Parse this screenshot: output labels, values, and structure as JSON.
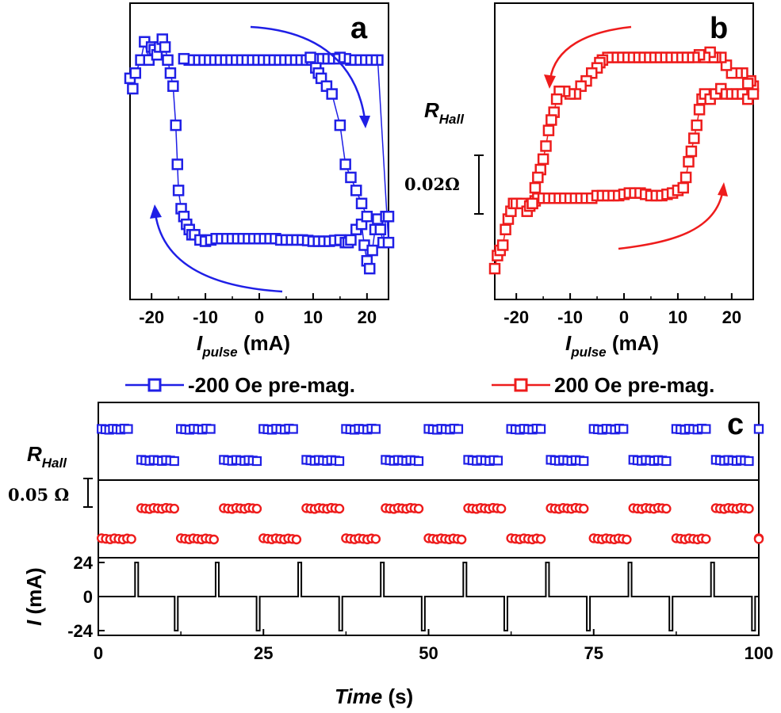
{
  "colors": {
    "blue": "#1f1fe6",
    "red": "#ee1c1c",
    "black": "#000000"
  },
  "labels": {
    "panel_a": "a",
    "panel_b": "b",
    "panel_c": "c",
    "rhall_main": "R",
    "rhall_sub": "Hall",
    "ipulse_main": "I",
    "ipulse_sub": "pulse",
    "ipulse_unit": " (mA)",
    "scale_b": "0.02Ω",
    "scale_c": "0.05 Ω",
    "legend_blue": "-200 Oe pre-mag.",
    "legend_red": "200 Oe pre-mag.",
    "i_axis_main": "I",
    "i_axis_unit": " (mA)",
    "time_main": "Time",
    "time_unit": " (s)"
  },
  "chart_data": [
    {
      "panel": "a",
      "type": "scatter",
      "series_ref": "legend_blue",
      "color": "#1f1fe6",
      "xlabel": "I_pulse (mA)",
      "xlim": [
        -24,
        24
      ],
      "ylim": [
        0,
        1
      ],
      "xticks": [
        -20,
        -10,
        0,
        10,
        20
      ],
      "points": [
        [
          -24,
          0.78
        ],
        [
          -23.5,
          0.74
        ],
        [
          -23,
          0.8
        ],
        [
          -22,
          0.85
        ],
        [
          -21.3,
          0.92
        ],
        [
          -20.5,
          0.85
        ],
        [
          -20,
          0.9
        ],
        [
          -19.5,
          0.89
        ],
        [
          -19,
          0.87
        ],
        [
          -18.5,
          0.9
        ],
        [
          -18,
          0.93
        ],
        [
          -17.5,
          0.9
        ],
        [
          -17,
          0.85
        ],
        [
          -16.5,
          0.8
        ],
        [
          -16,
          0.75
        ],
        [
          -15.5,
          0.6
        ],
        [
          -15.2,
          0.45
        ],
        [
          -15,
          0.35
        ],
        [
          -14.5,
          0.28
        ],
        [
          -14,
          0.25
        ],
        [
          -13.5,
          0.22
        ],
        [
          -13,
          0.2
        ],
        [
          -12.5,
          0.18
        ],
        [
          -12,
          0.18
        ],
        [
          -11,
          0.16
        ],
        [
          -10,
          0.155
        ],
        [
          -9,
          0.16
        ],
        [
          -8,
          0.165
        ],
        [
          -7,
          0.165
        ],
        [
          -6,
          0.165
        ],
        [
          -5,
          0.165
        ],
        [
          -4,
          0.165
        ],
        [
          -3,
          0.165
        ],
        [
          -2,
          0.165
        ],
        [
          -1,
          0.165
        ],
        [
          0,
          0.165
        ],
        [
          1,
          0.165
        ],
        [
          2,
          0.165
        ],
        [
          3,
          0.165
        ],
        [
          4,
          0.16
        ],
        [
          5,
          0.16
        ],
        [
          6,
          0.16
        ],
        [
          7,
          0.16
        ],
        [
          8,
          0.16
        ],
        [
          9,
          0.158
        ],
        [
          10,
          0.155
        ],
        [
          11,
          0.155
        ],
        [
          12,
          0.155
        ],
        [
          13,
          0.155
        ],
        [
          14,
          0.158
        ],
        [
          15,
          0.16
        ],
        [
          16,
          0.15
        ],
        [
          16.5,
          0.15
        ],
        [
          17,
          0.16
        ],
        [
          18,
          0.2
        ],
        [
          19,
          0.22
        ],
        [
          19.5,
          0.14
        ],
        [
          20,
          0.08
        ],
        [
          20.5,
          0.05
        ],
        [
          21,
          0.12
        ],
        [
          21.5,
          0.2
        ],
        [
          22,
          0.24
        ],
        [
          22.5,
          0.2
        ],
        [
          23,
          0.15
        ],
        [
          23.5,
          0.25
        ],
        [
          24,
          0.25
        ],
        [
          24,
          0.15
        ],
        [
          22,
          0.85
        ],
        [
          21,
          0.85
        ],
        [
          20,
          0.85
        ],
        [
          19,
          0.85
        ],
        [
          18,
          0.85
        ],
        [
          17,
          0.85
        ],
        [
          16,
          0.855
        ],
        [
          15,
          0.86
        ],
        [
          14,
          0.855
        ],
        [
          13,
          0.855
        ],
        [
          12,
          0.855
        ],
        [
          11,
          0.855
        ],
        [
          10,
          0.855
        ],
        [
          9,
          0.85
        ],
        [
          8,
          0.85
        ],
        [
          7,
          0.85
        ],
        [
          6,
          0.85
        ],
        [
          5,
          0.85
        ],
        [
          4,
          0.85
        ],
        [
          3,
          0.85
        ],
        [
          2,
          0.85
        ],
        [
          1,
          0.85
        ],
        [
          0,
          0.85
        ],
        [
          -1,
          0.85
        ],
        [
          -2,
          0.85
        ],
        [
          -3,
          0.85
        ],
        [
          -4,
          0.85
        ],
        [
          -5,
          0.85
        ],
        [
          -6,
          0.85
        ],
        [
          -7,
          0.85
        ],
        [
          -8,
          0.85
        ],
        [
          -9,
          0.85
        ],
        [
          -10,
          0.85
        ],
        [
          -11,
          0.85
        ],
        [
          -12,
          0.85
        ],
        [
          -13,
          0.85
        ],
        [
          -14,
          0.855
        ],
        [
          9.5,
          0.86
        ],
        [
          10.5,
          0.82
        ],
        [
          11,
          0.8
        ],
        [
          11.5,
          0.78
        ],
        [
          12.5,
          0.75
        ],
        [
          13.5,
          0.72
        ],
        [
          15,
          0.6
        ],
        [
          16,
          0.45
        ],
        [
          17,
          0.4
        ],
        [
          18,
          0.35
        ],
        [
          19,
          0.3
        ],
        [
          20,
          0.25
        ]
      ]
    },
    {
      "panel": "b",
      "type": "scatter",
      "series_ref": "legend_red",
      "color": "#ee1c1c",
      "xlabel": "I_pulse (mA)",
      "xlim": [
        -24,
        24
      ],
      "ylim": [
        0,
        1
      ],
      "xticks": [
        -20,
        -10,
        0,
        10,
        20
      ],
      "points": [
        [
          -24,
          0.05
        ],
        [
          -23.5,
          0.1
        ],
        [
          -23,
          0.12
        ],
        [
          -22.5,
          0.14
        ],
        [
          -22,
          0.2
        ],
        [
          -21.5,
          0.24
        ],
        [
          -21,
          0.27
        ],
        [
          -20.5,
          0.3
        ],
        [
          -20,
          0.3
        ],
        [
          -19,
          0.3
        ],
        [
          -18,
          0.27
        ],
        [
          -17.5,
          0.29
        ],
        [
          -17,
          0.3
        ],
        [
          -16.5,
          0.31
        ],
        [
          -16,
          0.32
        ],
        [
          -15,
          0.32
        ],
        [
          -14,
          0.32
        ],
        [
          -13,
          0.32
        ],
        [
          -12,
          0.32
        ],
        [
          -11,
          0.32
        ],
        [
          -10,
          0.32
        ],
        [
          -9,
          0.32
        ],
        [
          -8,
          0.32
        ],
        [
          -7,
          0.32
        ],
        [
          -6,
          0.32
        ],
        [
          -5,
          0.33
        ],
        [
          -4,
          0.33
        ],
        [
          -3,
          0.33
        ],
        [
          -2,
          0.33
        ],
        [
          -1,
          0.33
        ],
        [
          0,
          0.335
        ],
        [
          1,
          0.34
        ],
        [
          2,
          0.34
        ],
        [
          3,
          0.34
        ],
        [
          4,
          0.335
        ],
        [
          5,
          0.33
        ],
        [
          6,
          0.33
        ],
        [
          7,
          0.33
        ],
        [
          8,
          0.335
        ],
        [
          9,
          0.34
        ],
        [
          10,
          0.35
        ],
        [
          11,
          0.36
        ],
        [
          11.5,
          0.4
        ],
        [
          12,
          0.46
        ],
        [
          12.5,
          0.5
        ],
        [
          13,
          0.55
        ],
        [
          13.5,
          0.6
        ],
        [
          14,
          0.66
        ],
        [
          14.5,
          0.7
        ],
        [
          15,
          0.72
        ],
        [
          16,
          0.7
        ],
        [
          17,
          0.72
        ],
        [
          18,
          0.74
        ],
        [
          19,
          0.72
        ],
        [
          20,
          0.72
        ],
        [
          21,
          0.72
        ],
        [
          22,
          0.72
        ],
        [
          23,
          0.7
        ],
        [
          24,
          0.75
        ],
        [
          24,
          0.72
        ],
        [
          23.5,
          0.77
        ],
        [
          23,
          0.76
        ],
        [
          22,
          0.8
        ],
        [
          21,
          0.8
        ],
        [
          20,
          0.8
        ],
        [
          19,
          0.83
        ],
        [
          18,
          0.86
        ],
        [
          17,
          0.86
        ],
        [
          16.5,
          0.86
        ],
        [
          16,
          0.88
        ],
        [
          15,
          0.86
        ],
        [
          14,
          0.87
        ],
        [
          13,
          0.86
        ],
        [
          12,
          0.86
        ],
        [
          11,
          0.86
        ],
        [
          10,
          0.86
        ],
        [
          9,
          0.86
        ],
        [
          8,
          0.86
        ],
        [
          7,
          0.86
        ],
        [
          6,
          0.86
        ],
        [
          5,
          0.86
        ],
        [
          4,
          0.86
        ],
        [
          3,
          0.86
        ],
        [
          2,
          0.86
        ],
        [
          1,
          0.86
        ],
        [
          0,
          0.86
        ],
        [
          -1,
          0.86
        ],
        [
          -2,
          0.86
        ],
        [
          -3,
          0.86
        ],
        [
          -4,
          0.85
        ],
        [
          -4.5,
          0.84
        ],
        [
          -5,
          0.82
        ],
        [
          -6,
          0.8
        ],
        [
          -7,
          0.77
        ],
        [
          -8,
          0.75
        ],
        [
          -9,
          0.72
        ],
        [
          -10,
          0.72
        ],
        [
          -11,
          0.73
        ],
        [
          -12,
          0.73
        ],
        [
          -12.5,
          0.7
        ],
        [
          -13,
          0.65
        ],
        [
          -13.5,
          0.62
        ],
        [
          -14,
          0.58
        ],
        [
          -14.5,
          0.52
        ],
        [
          -15,
          0.47
        ],
        [
          -15.5,
          0.43
        ],
        [
          -16,
          0.4
        ],
        [
          -16.5,
          0.36
        ],
        [
          -17,
          0.3
        ]
      ]
    },
    {
      "panel": "c",
      "type": "scatter",
      "xlabel": "Time (s)",
      "xlim": [
        0,
        100
      ],
      "xticks": [
        0,
        25,
        50,
        75,
        100
      ],
      "pulse_ylim": [
        -24,
        24
      ],
      "pulse_yticks": [
        24,
        0,
        -24
      ],
      "blue_segments": [
        [
          0.5,
          4.5,
          "high"
        ],
        [
          6.5,
          11.5,
          "low"
        ],
        [
          12.5,
          17,
          "high"
        ],
        [
          19,
          24,
          "low"
        ],
        [
          25,
          29.5,
          "high"
        ],
        [
          31.5,
          36.5,
          "low"
        ],
        [
          37.5,
          42,
          "high"
        ],
        [
          43.5,
          48.5,
          "low"
        ],
        [
          50,
          54.5,
          "high"
        ],
        [
          56,
          60.5,
          "low"
        ],
        [
          62.5,
          67,
          "high"
        ],
        [
          68.5,
          73.5,
          "low"
        ],
        [
          75,
          79.5,
          "high"
        ],
        [
          81,
          86,
          "low"
        ],
        [
          87.5,
          92,
          "high"
        ],
        [
          93.5,
          98.5,
          "low"
        ],
        [
          100,
          100,
          "high"
        ]
      ],
      "red_segments": [
        [
          0.5,
          5,
          "low"
        ],
        [
          6.5,
          11.5,
          "high"
        ],
        [
          12.5,
          17.5,
          "low"
        ],
        [
          19,
          24,
          "high"
        ],
        [
          25,
          30,
          "low"
        ],
        [
          31.5,
          36.5,
          "high"
        ],
        [
          37.5,
          42,
          "low"
        ],
        [
          43.5,
          48.5,
          "high"
        ],
        [
          50,
          55,
          "low"
        ],
        [
          56,
          61,
          "high"
        ],
        [
          62.5,
          67,
          "low"
        ],
        [
          68.5,
          73.5,
          "high"
        ],
        [
          75,
          80,
          "low"
        ],
        [
          81,
          86,
          "high"
        ],
        [
          87.5,
          92,
          "low"
        ],
        [
          93.5,
          98.5,
          "high"
        ],
        [
          100,
          100,
          "low"
        ]
      ],
      "pulses": [
        [
          5.8,
          24
        ],
        [
          11.8,
          -24
        ],
        [
          18,
          24
        ],
        [
          24.2,
          -24
        ],
        [
          30.5,
          24
        ],
        [
          36.7,
          -24
        ],
        [
          43,
          24
        ],
        [
          49.2,
          -24
        ],
        [
          55.5,
          24
        ],
        [
          61.7,
          -24
        ],
        [
          68,
          24
        ],
        [
          74.2,
          -24
        ],
        [
          80.5,
          24
        ],
        [
          86.7,
          -24
        ],
        [
          93,
          24
        ],
        [
          99.2,
          -24
        ]
      ]
    }
  ]
}
